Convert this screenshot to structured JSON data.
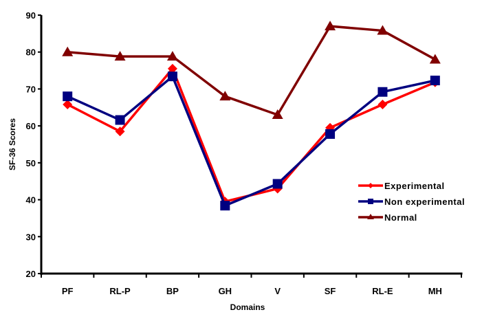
{
  "chart_data": {
    "type": "line",
    "title": "",
    "xlabel": "Domains",
    "ylabel": "SF-36 Scores",
    "ylim": [
      20,
      90
    ],
    "yticks": [
      20,
      30,
      40,
      50,
      60,
      70,
      80,
      90
    ],
    "grid": false,
    "legend_position": "bottom-right",
    "categories": [
      "PF",
      "RL-P",
      "BP",
      "GH",
      "V",
      "SF",
      "RL-E",
      "MH"
    ],
    "series": [
      {
        "name": "Experimental",
        "color": "#ff0000",
        "marker": "diamond",
        "values": [
          65.8,
          58.5,
          75.5,
          39.5,
          43.0,
          59.5,
          65.8,
          71.8
        ]
      },
      {
        "name": "Non experimental",
        "color": "#000080",
        "marker": "square",
        "values": [
          68.0,
          61.6,
          73.4,
          38.4,
          44.3,
          57.8,
          69.2,
          72.3
        ]
      },
      {
        "name": "Normal",
        "color": "#800000",
        "marker": "triangle",
        "values": [
          80.0,
          78.8,
          78.8,
          68.0,
          63.0,
          87.0,
          85.8,
          78.0
        ]
      }
    ]
  }
}
